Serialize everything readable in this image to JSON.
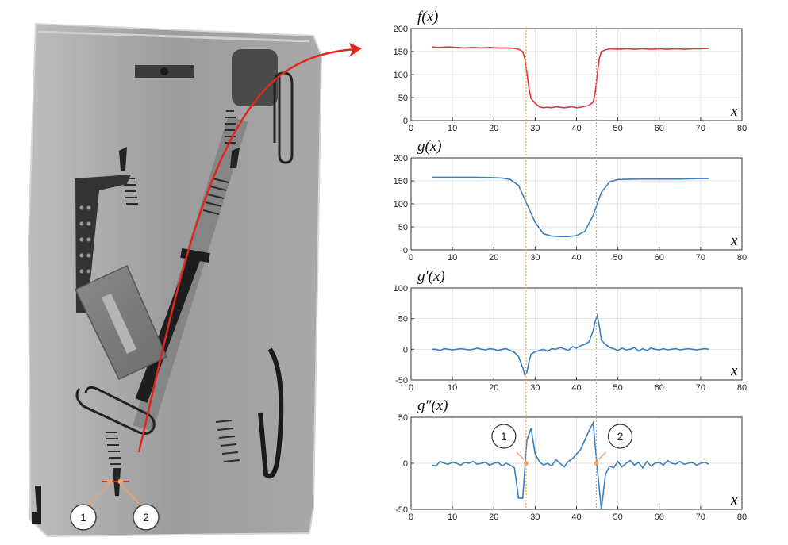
{
  "xray": {
    "markers": [
      "1",
      "2"
    ],
    "colors": {
      "background": "#ffffff",
      "pouch": "#9a9a9a",
      "arrow": "#e0271c",
      "marker": "#f2a26b"
    }
  },
  "chart_data": [
    {
      "type": "line",
      "title": "f(x)",
      "xlabel": "x",
      "xlim": [
        0,
        80
      ],
      "ylim": [
        0,
        200
      ],
      "x_ticks": [
        0,
        10,
        20,
        30,
        40,
        50,
        60,
        70,
        80
      ],
      "y_ticks": [
        0,
        50,
        100,
        150,
        200
      ],
      "color": "#e0343a",
      "x": [
        5,
        7,
        9,
        11,
        13,
        15,
        17,
        19,
        21,
        23,
        25,
        26,
        27,
        27.5,
        28,
        28.5,
        29,
        30,
        31,
        32,
        33,
        34,
        35,
        36,
        37,
        38,
        39,
        40,
        41,
        42,
        43,
        44,
        44.5,
        45,
        45.5,
        46,
        47,
        48,
        50,
        52,
        54,
        56,
        58,
        60,
        62,
        64,
        66,
        68,
        70,
        72
      ],
      "values": [
        160,
        159,
        160,
        159,
        158,
        159,
        158,
        159,
        158,
        158,
        157,
        155,
        150,
        135,
        105,
        70,
        48,
        38,
        30,
        28,
        29,
        28,
        30,
        29,
        28,
        29,
        30,
        28,
        29,
        31,
        33,
        40,
        60,
        100,
        135,
        150,
        154,
        156,
        155,
        156,
        155,
        156,
        155,
        156,
        155,
        156,
        155,
        156,
        156,
        157
      ]
    },
    {
      "type": "line",
      "title": "g(x)",
      "xlabel": "x",
      "xlim": [
        0,
        80
      ],
      "ylim": [
        0,
        200
      ],
      "x_ticks": [
        0,
        10,
        20,
        30,
        40,
        50,
        60,
        70,
        80
      ],
      "y_ticks": [
        0,
        50,
        100,
        150,
        200
      ],
      "color": "#3a7fc0",
      "x": [
        5,
        10,
        15,
        20,
        22,
        24,
        26,
        28,
        30,
        32,
        34,
        36,
        38,
        40,
        42,
        44,
        46,
        48,
        50,
        55,
        60,
        65,
        70,
        72
      ],
      "values": [
        158,
        158,
        158,
        157,
        156,
        153,
        140,
        100,
        60,
        35,
        30,
        29,
        29,
        31,
        40,
        75,
        125,
        148,
        153,
        154,
        154,
        154,
        155,
        155
      ]
    },
    {
      "type": "line",
      "title": "g′(x)",
      "xlabel": "x",
      "xlim": [
        0,
        80
      ],
      "ylim": [
        -50,
        100
      ],
      "x_ticks": [
        0,
        10,
        20,
        30,
        40,
        50,
        60,
        70,
        80
      ],
      "y_ticks": [
        -50,
        0,
        50,
        100
      ],
      "color": "#3a7fc0",
      "x": [
        5,
        6,
        7,
        8,
        9,
        10,
        11,
        12,
        13,
        14,
        15,
        16,
        17,
        18,
        19,
        20,
        21,
        22,
        23,
        24,
        25,
        26,
        27,
        27.5,
        28,
        28.5,
        29,
        30,
        31,
        32,
        33,
        34,
        35,
        36,
        37,
        38,
        39,
        40,
        41,
        42,
        43,
        44,
        44.5,
        45,
        45.5,
        46,
        47,
        48,
        49,
        50,
        51,
        52,
        53,
        54,
        55,
        56,
        57,
        58,
        59,
        60,
        61,
        62,
        63,
        64,
        65,
        66,
        67,
        68,
        69,
        70,
        71,
        72
      ],
      "values": [
        0,
        0,
        -2,
        1,
        0,
        -1,
        0,
        1,
        0,
        -1,
        0,
        2,
        0,
        -1,
        1,
        0,
        -2,
        0,
        1,
        -2,
        -5,
        -12,
        -30,
        -42,
        -38,
        -20,
        -8,
        -4,
        -2,
        0,
        -3,
        1,
        0,
        3,
        1,
        -2,
        4,
        2,
        6,
        8,
        12,
        30,
        45,
        55,
        38,
        15,
        8,
        3,
        1,
        -2,
        2,
        -1,
        0,
        3,
        -3,
        1,
        -2,
        2,
        0,
        -1,
        1,
        -1,
        0,
        1,
        -1,
        0,
        1,
        0,
        -1,
        0,
        1,
        0
      ]
    },
    {
      "type": "line",
      "title": "g″(x)",
      "xlabel": "x",
      "xlim": [
        0,
        80
      ],
      "ylim": [
        -50,
        50
      ],
      "x_ticks": [
        0,
        10,
        20,
        30,
        40,
        50,
        60,
        70,
        80
      ],
      "y_ticks": [
        -50,
        0,
        50
      ],
      "color": "#3a7fc0",
      "x": [
        5,
        6,
        7,
        8,
        9,
        10,
        11,
        12,
        13,
        14,
        15,
        16,
        17,
        18,
        19,
        20,
        21,
        22,
        23,
        24,
        25,
        26,
        27,
        28,
        29,
        30,
        31,
        32,
        33,
        34,
        35,
        36,
        37,
        38,
        39,
        40,
        41,
        42,
        43,
        44,
        45,
        46,
        47,
        48,
        49,
        50,
        51,
        52,
        53,
        54,
        55,
        56,
        57,
        58,
        59,
        60,
        61,
        62,
        63,
        64,
        65,
        66,
        67,
        68,
        69,
        70,
        71,
        72
      ],
      "values": [
        -2,
        -3,
        2,
        0,
        -1,
        1,
        0,
        -2,
        1,
        0,
        2,
        -1,
        0,
        1,
        -2,
        0,
        1,
        -3,
        0,
        -2,
        -5,
        -38,
        -38,
        25,
        38,
        10,
        2,
        -2,
        0,
        -3,
        4,
        0,
        -4,
        2,
        5,
        10,
        15,
        25,
        35,
        44,
        -5,
        -50,
        -12,
        -3,
        -5,
        2,
        -4,
        0,
        3,
        -2,
        1,
        -5,
        2,
        -3,
        0,
        1,
        -2,
        3,
        0,
        -1,
        2,
        -1,
        0,
        1,
        -2,
        0,
        1,
        -1
      ]
    }
  ],
  "guide_lines": {
    "x": [
      27.8,
      44.8
    ],
    "color": "#f0a040"
  },
  "callouts": [
    {
      "label": "1",
      "at_x": 27.8
    },
    {
      "label": "2",
      "at_x": 44.8
    }
  ]
}
